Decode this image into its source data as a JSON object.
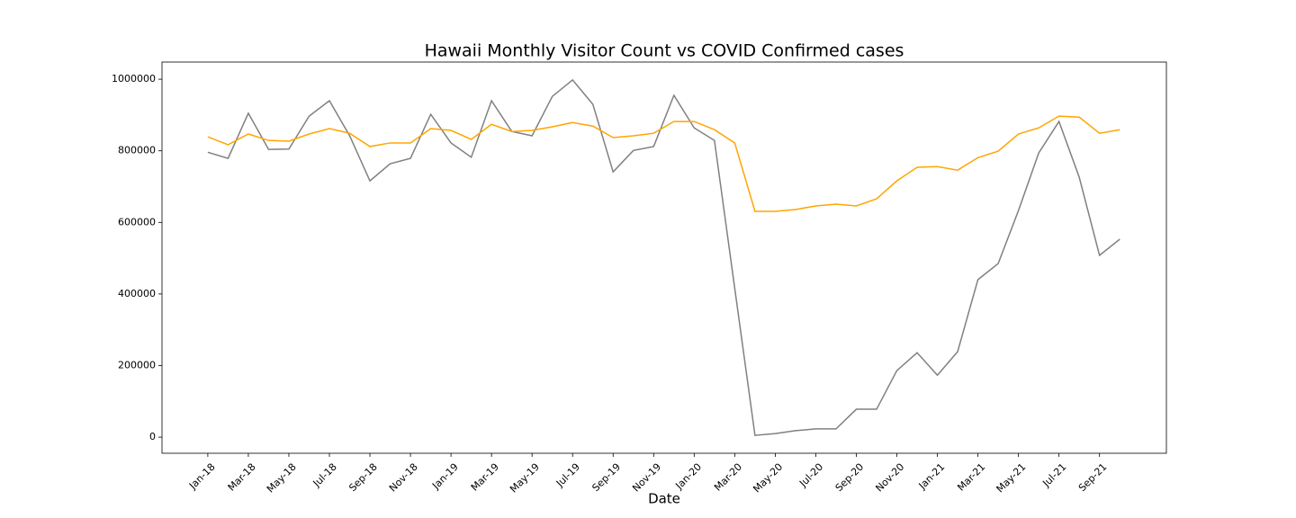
{
  "chart_data": {
    "type": "line",
    "title": "Hawaii Monthly Visitor Count vs COVID Confirmed cases",
    "x_label": "Date",
    "categories": [
      "Jan-18",
      null,
      "Mar-18",
      null,
      "May-18",
      null,
      "Jul-18",
      null,
      "Sep-18",
      null,
      "Nov-18",
      null,
      "Jan-19",
      null,
      "Mar-19",
      null,
      "May-19",
      null,
      "Jul-19",
      null,
      "Sep-19",
      null,
      "Nov-19",
      null,
      "Jan-20",
      null,
      "Mar-20",
      null,
      "May-20",
      null,
      "Jul-20",
      null,
      "Sep-20",
      null,
      "Nov-20",
      null,
      "Jan-21",
      null,
      "Mar-21",
      null,
      "May-21",
      null,
      "Jul-21",
      null,
      "Sep-21",
      null
    ],
    "series": [
      {
        "color": "#808080",
        "values": [
          796000,
          779000,
          905000,
          804000,
          805000,
          897000,
          940000,
          842000,
          716000,
          764000,
          779000,
          902000,
          822000,
          782000,
          940000,
          854000,
          842000,
          952000,
          998000,
          930000,
          741000,
          801000,
          812000,
          955000,
          864000,
          829000,
          416000,
          5000,
          10000,
          18000,
          23000,
          23000,
          78000,
          78000,
          186000,
          236000,
          173000,
          239000,
          440000,
          485000,
          633000,
          794000,
          882000,
          726000,
          508000,
          553000
        ]
      },
      {
        "color": "#ffa500",
        "values": [
          839000,
          817000,
          847000,
          829000,
          827000,
          847000,
          862000,
          849000,
          812000,
          822000,
          822000,
          862000,
          857000,
          832000,
          874000,
          854000,
          857000,
          867000,
          879000,
          869000,
          837000,
          842000,
          849000,
          882000,
          882000,
          859000,
          822000,
          631000,
          631000,
          636000,
          646000,
          651000,
          646000,
          666000,
          716000,
          754000,
          756000,
          746000,
          781000,
          799000,
          847000,
          864000,
          897000,
          894000,
          849000,
          859000
        ]
      }
    ],
    "ylim": [
      -45000,
      1048000
    ],
    "yticks": [
      0,
      200000,
      400000,
      600000,
      800000,
      1000000
    ],
    "grid": false
  }
}
